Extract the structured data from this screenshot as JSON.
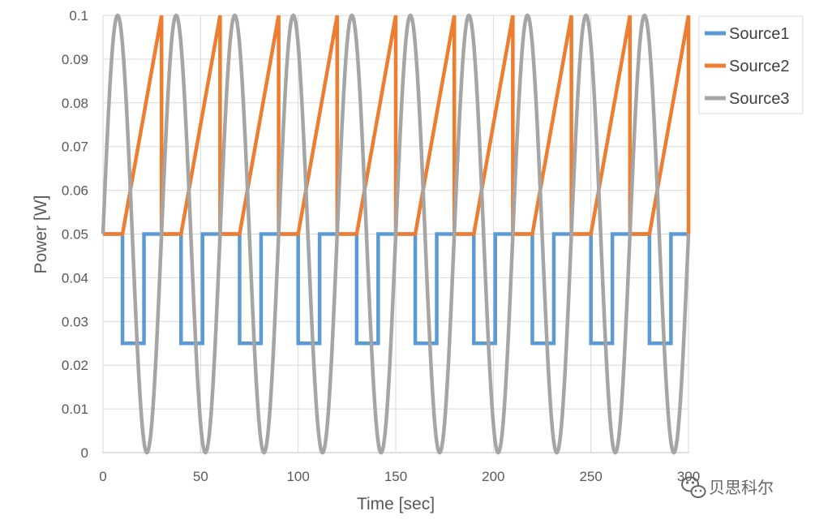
{
  "chart_data": {
    "type": "line",
    "xlabel": "Time [sec]",
    "ylabel": "Power [W]",
    "xlim": [
      0,
      300
    ],
    "ylim": [
      0,
      0.1
    ],
    "x_ticks": [
      "0",
      "50",
      "100",
      "150",
      "200",
      "250",
      "300"
    ],
    "y_ticks": [
      "0",
      "0.01",
      "0.02",
      "0.03",
      "0.04",
      "0.05",
      "0.06",
      "0.07",
      "0.08",
      "0.09",
      "0.1"
    ],
    "grid": true,
    "legend_position": "top-right, outside plot",
    "series": [
      {
        "name": "Source1",
        "color": "#5B9BD5",
        "shape": "square wave",
        "period": 30,
        "high": 0.05,
        "low": 0.025,
        "low_start_offset": 10,
        "low_end_offset": 21
      },
      {
        "name": "Source2",
        "color": "#ED7D31",
        "shape": "flat then linear ramp, then drop",
        "period": 30,
        "base": 0.05,
        "peak": 0.1,
        "ramp_start_offset": 10,
        "ramp_end_offset": 30
      },
      {
        "name": "Source3",
        "color": "#A5A5A5",
        "shape": "sine",
        "period": 30,
        "mean": 0.05,
        "amplitude": 0.05
      }
    ]
  },
  "watermark": {
    "text": "贝思科尔",
    "icon": "wechat-icon"
  }
}
